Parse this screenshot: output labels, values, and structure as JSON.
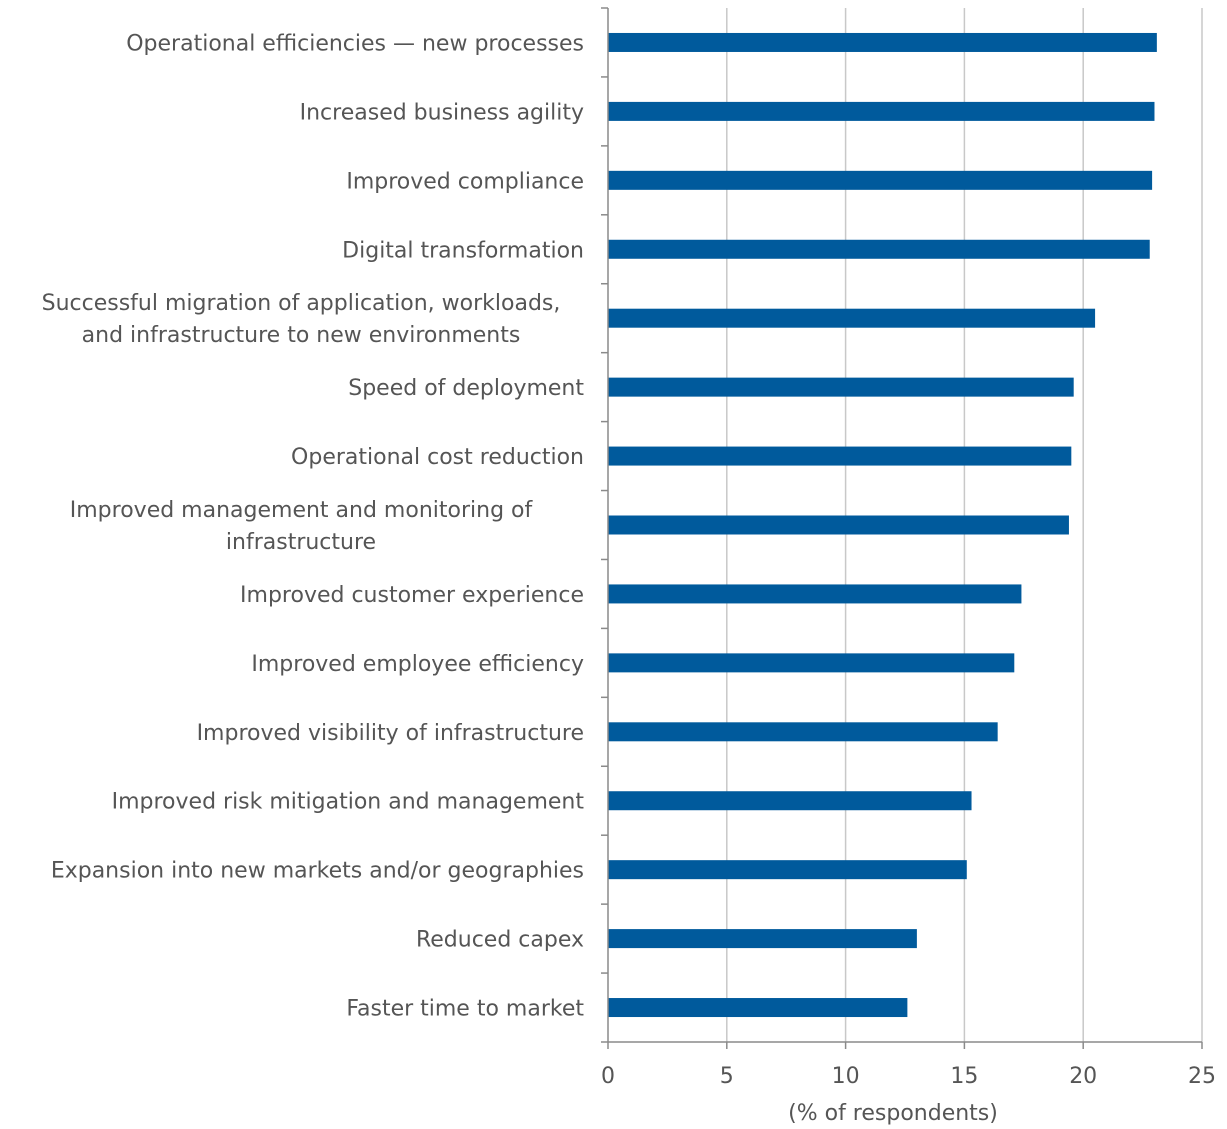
{
  "chart_data": {
    "type": "bar",
    "orientation": "horizontal",
    "categories": [
      [
        "Operational efficiencies — new processes"
      ],
      [
        "Increased business agility"
      ],
      [
        "Improved compliance"
      ],
      [
        "Digital transformation"
      ],
      [
        "Successful migration of application, workloads,",
        "and infrastructure to new environments"
      ],
      [
        "Speed of deployment"
      ],
      [
        "Operational cost reduction"
      ],
      [
        "Improved management and monitoring of",
        "infrastructure"
      ],
      [
        "Improved customer experience"
      ],
      [
        "Improved employee efficiency"
      ],
      [
        "Improved visibility of infrastructure"
      ],
      [
        "Improved risk mitigation and management"
      ],
      [
        "Expansion into new markets and/or geographies"
      ],
      [
        "Reduced capex"
      ],
      [
        "Faster time to market"
      ]
    ],
    "values": [
      23.1,
      23.0,
      22.9,
      22.8,
      20.5,
      19.6,
      19.5,
      19.4,
      17.4,
      17.1,
      16.4,
      15.3,
      15.1,
      13.0,
      12.6
    ],
    "xlabel": "(% of respondents)",
    "xlim": [
      0,
      25
    ],
    "xticks": [
      0,
      5,
      10,
      15,
      20,
      25
    ],
    "grid": true,
    "legend": "none",
    "bar_color": "#005a9c"
  }
}
